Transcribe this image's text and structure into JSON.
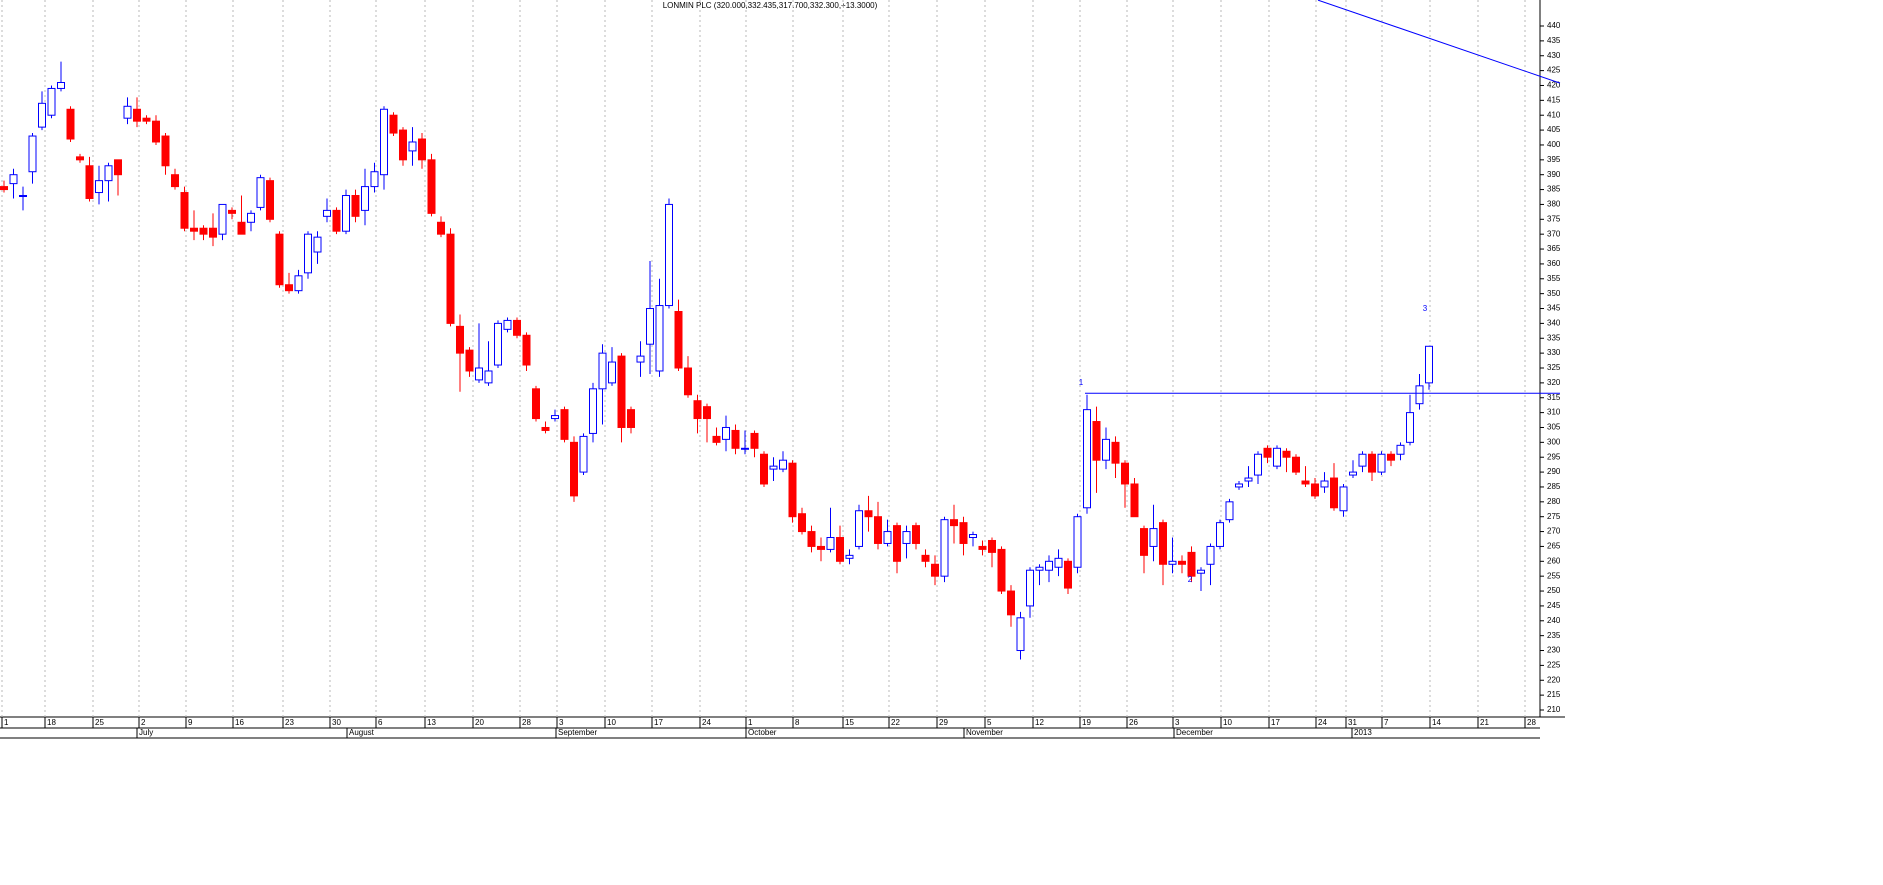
{
  "chart_data": {
    "type": "candlestick",
    "title": "LONMIN PLC (320.000,332.435,317.700,332.300,+13.3000)",
    "up_color": "#0000ff",
    "down_color": "#ff0000",
    "open": [
      386,
      387,
      383,
      391,
      406,
      410,
      419,
      412,
      396,
      393,
      384,
      388,
      395,
      409,
      412,
      409,
      408,
      403,
      390,
      384,
      372,
      372,
      372,
      370,
      378,
      374,
      374,
      379,
      388,
      370,
      353,
      351,
      357,
      364,
      376,
      378,
      371,
      383,
      378,
      386,
      390,
      410,
      405,
      398,
      402,
      395,
      374,
      370,
      339,
      331,
      321,
      320,
      326,
      338,
      341,
      336,
      318,
      305,
      308,
      311,
      300,
      290,
      303,
      318,
      320,
      329,
      311,
      327,
      333,
      324,
      346,
      344,
      325,
      314,
      312,
      302,
      301,
      304,
      298,
      303,
      296,
      291,
      291,
      293,
      276,
      270,
      265,
      264,
      268,
      261,
      265,
      277,
      275,
      266,
      272,
      266,
      272,
      262,
      259,
      255,
      274,
      273,
      268,
      265,
      267,
      264,
      250,
      230,
      245,
      257,
      257,
      258,
      260,
      258,
      278,
      307,
      294,
      300,
      293,
      286,
      271,
      265,
      273,
      259,
      260,
      263,
      256,
      259,
      265,
      274,
      285,
      287,
      289,
      298,
      292,
      297,
      295,
      287,
      286,
      285,
      288,
      277,
      289,
      292,
      296,
      290,
      296,
      296,
      300,
      313,
      320
    ],
    "high": [
      388,
      392,
      386,
      404,
      418,
      420,
      428,
      413,
      397,
      396,
      393,
      394,
      395,
      416,
      416,
      410,
      410,
      404,
      392,
      386,
      378,
      373,
      377,
      380,
      379,
      383,
      378,
      390,
      389,
      371,
      357,
      358,
      371,
      371,
      382,
      379,
      385,
      385,
      392,
      394,
      413,
      411,
      406,
      406,
      404,
      397,
      376,
      372,
      343,
      332,
      340,
      334,
      341,
      342,
      342,
      337,
      319,
      307,
      311,
      312,
      302,
      303,
      320,
      333,
      332,
      330,
      312,
      334,
      361,
      355,
      382,
      348,
      329,
      316,
      313,
      305,
      309,
      306,
      304,
      304,
      297,
      295,
      297,
      294,
      278,
      272,
      268,
      278,
      272,
      264,
      279,
      282,
      280,
      274,
      273,
      272,
      273,
      264,
      262,
      275,
      279,
      275,
      270,
      267,
      268,
      265,
      252,
      243,
      258,
      259,
      262,
      264,
      261,
      276,
      316,
      312,
      305,
      302,
      294,
      288,
      272,
      279,
      274,
      268,
      262,
      265,
      258,
      266,
      274,
      281,
      287,
      292,
      297,
      299,
      299,
      298,
      296,
      292,
      288,
      290,
      293,
      286,
      294,
      297,
      297,
      297,
      297,
      300,
      316,
      323,
      332.435
    ],
    "low": [
      384,
      382,
      378,
      387,
      405,
      409,
      418,
      401,
      394,
      381,
      380,
      381,
      383,
      407,
      406,
      407,
      400,
      390,
      385,
      371,
      368,
      368,
      366,
      368,
      375,
      370,
      371,
      378,
      374,
      352,
      350,
      350,
      355,
      360,
      374,
      370,
      370,
      374,
      373,
      384,
      385,
      403,
      393,
      393,
      392,
      376,
      369,
      339,
      317,
      322,
      320,
      319,
      325,
      337,
      335,
      324,
      307,
      303,
      307,
      300,
      280,
      289,
      300,
      306,
      319,
      300,
      303,
      322,
      323,
      322,
      345,
      324,
      315,
      303,
      300,
      299,
      297,
      296,
      296,
      295,
      285,
      287,
      290,
      273,
      269,
      263,
      260,
      263,
      259,
      259,
      264,
      270,
      264,
      265,
      256,
      261,
      264,
      258,
      252,
      253,
      266,
      262,
      265,
      262,
      258,
      249,
      238,
      227,
      241,
      252,
      253,
      255,
      249,
      256,
      276,
      283,
      291,
      288,
      278,
      275,
      256,
      260,
      252,
      256,
      256,
      253,
      250,
      252,
      264,
      273,
      284,
      285,
      286,
      293,
      291,
      290,
      289,
      285,
      281,
      283,
      277,
      275,
      288,
      290,
      287,
      289,
      292,
      294,
      299,
      311,
      317.7
    ],
    "close": [
      385,
      390,
      383,
      403,
      414,
      419,
      421,
      402,
      395,
      382,
      388,
      393,
      390,
      413,
      408,
      408,
      401,
      393,
      386,
      372,
      371,
      370,
      369,
      380,
      377,
      370,
      377,
      389,
      375,
      353,
      351,
      356,
      370,
      369,
      378,
      371,
      383,
      376,
      386,
      391,
      412,
      404,
      395,
      401,
      395,
      377,
      370,
      340,
      330,
      324,
      325,
      324,
      340,
      341,
      336,
      326,
      308,
      304,
      309,
      301,
      282,
      302,
      318,
      330,
      327,
      305,
      305,
      329,
      345,
      346,
      380,
      325,
      316,
      308,
      308,
      300,
      305,
      298,
      298,
      298,
      286,
      292,
      294,
      275,
      270,
      265,
      264,
      268,
      260,
      262,
      277,
      275,
      266,
      270,
      260,
      270,
      266,
      260,
      255,
      274,
      272,
      266,
      269,
      264,
      263,
      250,
      242,
      241,
      257,
      258,
      260,
      261,
      251,
      275,
      311,
      294,
      301,
      293,
      286,
      275,
      262,
      271,
      259,
      260,
      259,
      255,
      257,
      265,
      273,
      280,
      286,
      288,
      296,
      295,
      298,
      295,
      290,
      286,
      282,
      287,
      278,
      285,
      290,
      296,
      290,
      296,
      294,
      299,
      310,
      319,
      332.3
    ],
    "ylim": [
      210,
      440
    ],
    "yticks": [
      210,
      215,
      220,
      225,
      230,
      235,
      240,
      245,
      250,
      255,
      260,
      265,
      270,
      275,
      280,
      285,
      290,
      295,
      300,
      305,
      310,
      315,
      320,
      325,
      330,
      335,
      340,
      345,
      350,
      355,
      360,
      365,
      370,
      375,
      380,
      385,
      390,
      395,
      400,
      405,
      410,
      415,
      420,
      425,
      430,
      435,
      440
    ],
    "day_labels": [
      "1",
      "18",
      "25",
      "2",
      "9",
      "16",
      "23",
      "30",
      "6",
      "13",
      "20",
      "28",
      "3",
      "10",
      "17",
      "24",
      "1",
      "8",
      "15",
      "22",
      "29",
      "5",
      "12",
      "19",
      "26",
      "3",
      "10",
      "17",
      "24",
      "31",
      "7",
      "14",
      "21",
      "28"
    ],
    "month_labels": [
      "July",
      "August",
      "September",
      "October",
      "November",
      "December",
      "2013"
    ],
    "trend_lines": [
      {
        "values": [
          316.5,
          316.5
        ]
      },
      {
        "values": [
          448.7,
          420.8
        ]
      }
    ],
    "annotations": [
      "1",
      "2",
      "3"
    ]
  }
}
